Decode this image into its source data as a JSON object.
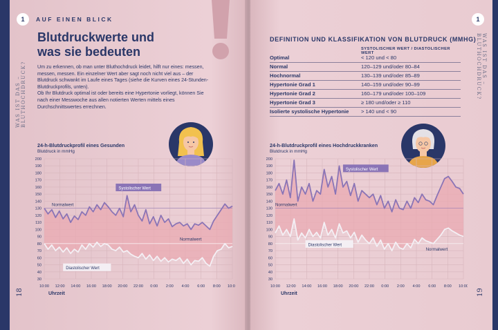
{
  "left": {
    "badge": "1",
    "overline": "AUF EINEN BLICK",
    "side_label": "WAS IST DAS – BLUTHOCHDRUCK?",
    "title_line1": "Blutdruckwerte und",
    "title_line2": "was sie bedeuten",
    "paragraph1": "Um zu erkennen, ob man unter Bluthochdruck leidet, hilft nur eines: messen, messen, messen. Ein einzelner Wert aber sagt noch nicht viel aus – der Blutdruck schwankt im Laufe eines Tages (siehe die Kurven eines 24-Stunden-Blutdruckprofils, unten).",
    "paragraph2": "Ob Ihr Blutdruck optimal ist oder bereits eine Hypertonie vorliegt, können Sie nach einer Messwoche aus allen notierten Werten mittels eines Durchschnittswertes errechnen.",
    "page_number": "18"
  },
  "right": {
    "badge": "1",
    "side_label": "WAS IST DAS – BLUTHOCHDRUCK?",
    "table_title": "DEFINITION UND KLASSIFIKATION VON BLUTDRUCK (MMHG)",
    "table_header": "SYSTOLISCHER WERT / DIASTOLISCHER WERT",
    "rows": [
      {
        "label": "Optimal",
        "value": "< 120 und < 80"
      },
      {
        "label": "Normal",
        "value": "120–129 und/oder 80–84"
      },
      {
        "label": "Hochnormal",
        "value": "130–139 und/oder 85–89"
      },
      {
        "label": "Hypertonie Grad 1",
        "value": "140–159 und/oder 90–99"
      },
      {
        "label": "Hypertonie Grad 2",
        "value": "160–179 und/oder 100–109"
      },
      {
        "label": "Hypertonie Grad 3",
        "value": "≥ 180 und/oder ≥ 110"
      },
      {
        "label": "Isolierte systolische Hypertonie",
        "value": "> 140 und < 90"
      }
    ],
    "page_number": "19"
  },
  "chart_data": [
    {
      "type": "line",
      "title": "24-h-Blutdruckprofil eines Gesunden",
      "ylabel": "Blutdruck in mmHg",
      "xlabel": "Uhrzeit",
      "ylim": [
        30,
        200
      ],
      "yticks": [
        200,
        190,
        180,
        170,
        160,
        150,
        140,
        130,
        120,
        110,
        100,
        90,
        80,
        70,
        60,
        50,
        40,
        30
      ],
      "xticks": [
        "10:00",
        "12:00",
        "14:00",
        "16:00",
        "18:00",
        "20:00",
        "22:00",
        "0:00",
        "2:00",
        "4:00",
        "6:00",
        "8:00",
        "10:00"
      ],
      "normal_systolic": 130,
      "normal_diastolic": 80,
      "series": [
        {
          "name": "Systolischer Wert",
          "color": "#8a74b6",
          "values": [
            130,
            122,
            128,
            117,
            126,
            115,
            122,
            110,
            119,
            114,
            125,
            120,
            132,
            125,
            135,
            128,
            138,
            132,
            125,
            120,
            130,
            118,
            148,
            125,
            135,
            120,
            112,
            128,
            108,
            118,
            105,
            120,
            110,
            115,
            104,
            108,
            110,
            105,
            108,
            100,
            108,
            106,
            110,
            105,
            100,
            112,
            120,
            128,
            136,
            130,
            133
          ]
        },
        {
          "name": "Diastolischer Wert",
          "color": "#f4f0f5",
          "values": [
            80,
            72,
            78,
            70,
            75,
            68,
            74,
            66,
            72,
            68,
            78,
            72,
            80,
            75,
            82,
            76,
            80,
            78,
            72,
            70,
            75,
            68,
            70,
            65,
            62,
            60,
            66,
            58,
            64,
            56,
            62,
            55,
            60,
            54,
            58,
            56,
            60,
            52,
            58,
            50,
            56,
            55,
            60,
            52,
            48,
            62,
            70,
            72,
            80,
            74,
            76
          ]
        }
      ],
      "annotations": {
        "systolic_label": "Systolischer Wert",
        "diastolic_label": "Diastolischer Wert",
        "normal_label_top": "Normalwert",
        "normal_label_bottom": "Normalwert"
      }
    },
    {
      "type": "line",
      "title": "24-h-Blutdruckprofil eines Hochdruckkranken",
      "ylabel": "Blutdruck in mmHg",
      "xlabel": "Uhrzeit",
      "ylim": [
        30,
        200
      ],
      "yticks": [
        200,
        190,
        180,
        170,
        160,
        150,
        140,
        130,
        120,
        110,
        100,
        90,
        80,
        70,
        60,
        50,
        40,
        30
      ],
      "xticks": [
        "10:00",
        "12:00",
        "14:00",
        "16:00",
        "18:00",
        "20:00",
        "22:00",
        "0:00",
        "2:00",
        "4:00",
        "6:00",
        "8:00",
        "10:00"
      ],
      "normal_systolic": 130,
      "normal_diastolic": 80,
      "series": [
        {
          "name": "Systolischer Wert",
          "color": "#8a74b6",
          "values": [
            155,
            165,
            150,
            170,
            145,
            198,
            140,
            160,
            150,
            165,
            140,
            155,
            150,
            185,
            160,
            175,
            150,
            190,
            160,
            168,
            148,
            165,
            140,
            155,
            150,
            145,
            150,
            135,
            148,
            130,
            140,
            125,
            142,
            130,
            128,
            140,
            130,
            145,
            138,
            150,
            142,
            140,
            135,
            148,
            160,
            172,
            175,
            168,
            160,
            158,
            150
          ]
        },
        {
          "name": "Diastolischer Wert",
          "color": "#f4f0f5",
          "values": [
            95,
            105,
            92,
            100,
            90,
            115,
            85,
            95,
            88,
            100,
            90,
            96,
            88,
            110,
            92,
            100,
            88,
            108,
            95,
            98,
            88,
            96,
            82,
            92,
            85,
            80,
            88,
            76,
            85,
            72,
            80,
            70,
            82,
            74,
            72,
            80,
            74,
            86,
            80,
            88,
            84,
            82,
            80,
            86,
            92,
            100,
            102,
            98,
            95,
            92,
            90
          ]
        }
      ],
      "annotations": {
        "systolic_label": "Systolischer Wert",
        "diastolic_label": "Diastolischer Wert",
        "normal_label_top": "Normalwert",
        "normal_label_bottom": "Normalwert"
      }
    }
  ],
  "colors": {
    "navy": "#2a3768",
    "pink_fill": "#eaa9b2",
    "purple": "#8a74b6",
    "exclaim": "#d1a2ac"
  },
  "icons": [
    "exclamation-mark-icon",
    "young-woman-avatar-icon",
    "elderly-woman-avatar-icon"
  ]
}
